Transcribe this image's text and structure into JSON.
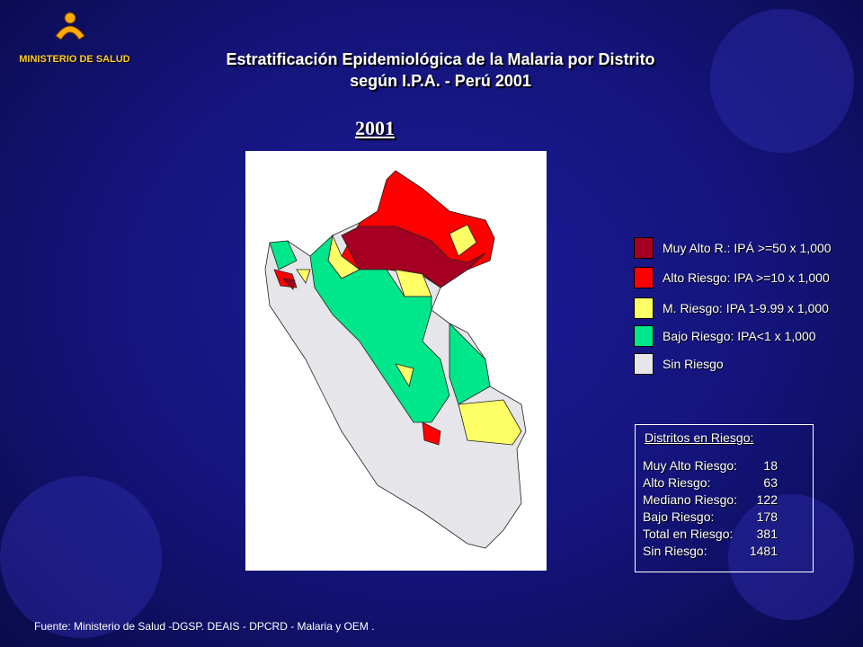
{
  "header": {
    "organization": "MINISTERIO DE SALUD",
    "title": [
      "Estratificación Epidemiológica de la Malaria por Distrito",
      "según I.P.A. - Perú  2001"
    ]
  },
  "map": {
    "year": "2001"
  },
  "legend": [
    {
      "label": "Muy Alto R.: IPÁ >=50 x 1,000",
      "color": "#a50021"
    },
    {
      "label": "Alto Riesgo: IPA >=10 x 1,000",
      "color": "#ff0000"
    },
    {
      "label": "M. Riesgo: IPA 1-9.99 x 1,000",
      "color": "#ffff66"
    },
    {
      "label": "Bajo Riesgo: IPA<1 x 1,000",
      "color": "#00e68a"
    },
    {
      "label": "Sin Riesgo",
      "color": "#e6e6ea"
    }
  ],
  "summary": {
    "title": "Distritos en Riesgo:",
    "rows": [
      [
        "Muy Alto Riesgo:",
        "18"
      ],
      [
        "Alto Riesgo:",
        "63"
      ],
      [
        "Mediano Riesgo:",
        "122"
      ],
      [
        "Bajo Riesgo:",
        "178"
      ],
      [
        "Total en Riesgo:",
        "381"
      ],
      [
        "Sin Riesgo:",
        "1481"
      ]
    ]
  },
  "footer": {
    "source": "Fuente: Ministerio de Salud -DGSP. DEAIS - DPCRD - Malaria y OEM ."
  }
}
